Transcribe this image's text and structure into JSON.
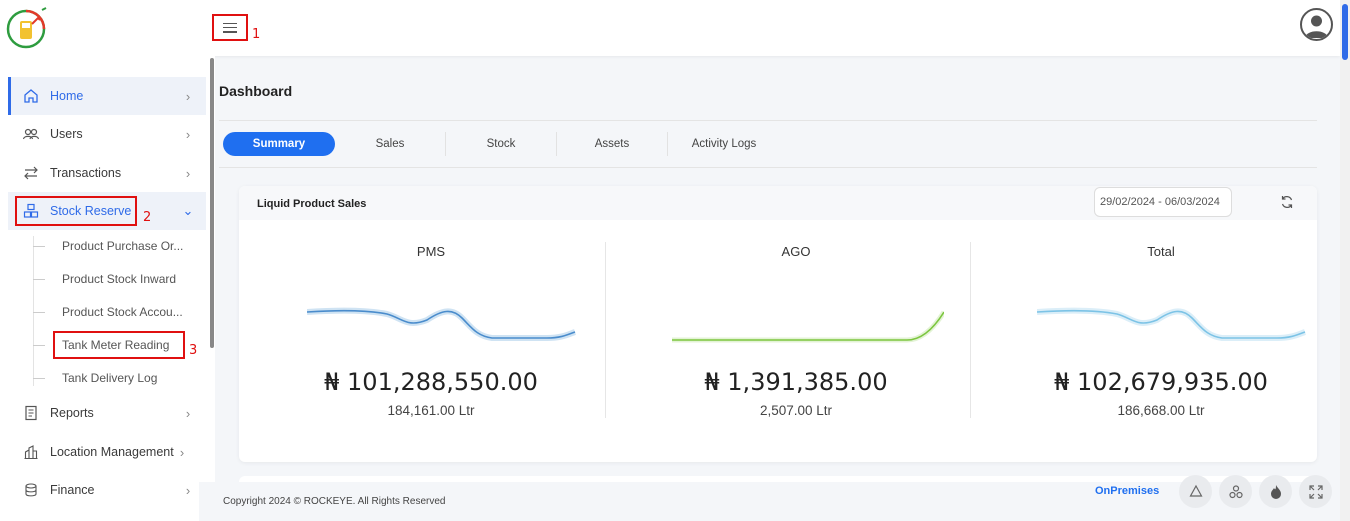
{
  "annotations": {
    "hamburger": "1",
    "stock_reserve": "2",
    "tank_meter": "3"
  },
  "sidebar": {
    "items": [
      {
        "label": "Home",
        "icon": "home-icon"
      },
      {
        "label": "Users",
        "icon": "users-icon"
      },
      {
        "label": "Transactions",
        "icon": "transfer-icon"
      },
      {
        "label": "Stock Reserve",
        "icon": "stock-icon"
      },
      {
        "label": "Reports",
        "icon": "report-icon"
      },
      {
        "label": "Location Management",
        "icon": "location-icon"
      },
      {
        "label": "Finance",
        "icon": "finance-icon"
      }
    ],
    "sub_items": [
      "Product Purchase Or...",
      "Product Stock Inward",
      "Product Stock Accou...",
      "Tank Meter Reading",
      "Tank Delivery Log"
    ]
  },
  "main": {
    "title": "Dashboard",
    "tabs": [
      "Summary",
      "Sales",
      "Stock",
      "Assets",
      "Activity Logs"
    ],
    "card": {
      "title": "Liquid Product Sales",
      "date_range": "29/02/2024 - 06/03/2024",
      "columns": [
        {
          "label": "PMS",
          "amount": "₦ 101,288,550.00",
          "volume": "184,161.00 Ltr",
          "color": "#4a8ccc"
        },
        {
          "label": "AGO",
          "amount": "₦ 1,391,385.00",
          "volume": "2,507.00 Ltr",
          "color": "#7cc63f"
        },
        {
          "label": "Total",
          "amount": "₦ 102,679,935.00",
          "volume": "186,668.00 Ltr",
          "color": "#7cc3e6"
        }
      ]
    }
  },
  "footer": {
    "copyright": "Copyright 2024 © ROCKEYE. All Rights Reserved",
    "mode": "OnPremises"
  },
  "colors": {
    "accent": "#1f6ff0",
    "annotation": "#e01010"
  }
}
